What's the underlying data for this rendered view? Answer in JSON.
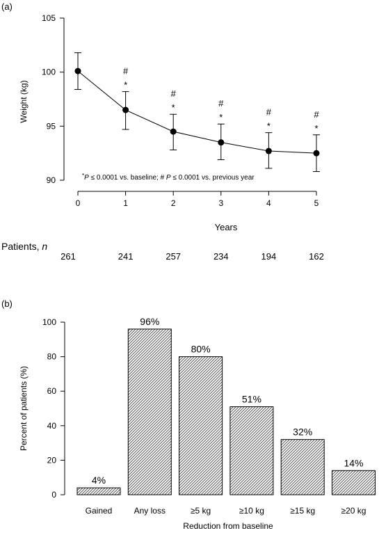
{
  "panel_a": {
    "panel_label": "(a)",
    "ylabel": "Weight (kg)",
    "xlabel": "Years",
    "annotation_star": "*",
    "annotation_hash": "#",
    "footnote": {
      "star": "*",
      "p1": "P",
      "t1": " ≤ 0.0001 vs. baseline; # ",
      "p2": "P",
      "t2": " ≤ 0.0001 vs. previous year"
    },
    "patients_label": "Patients, ",
    "patients_label_n": "n",
    "patients": [
      "261",
      "241",
      "257",
      "234",
      "194",
      "162"
    ]
  },
  "panel_b": {
    "panel_label": "(b)",
    "ylabel": "Percent of patients (%)",
    "xlabel": "Reduction from baseline"
  },
  "chart_data": [
    {
      "type": "line",
      "xlabel": "Years",
      "ylabel": "Weight (kg)",
      "x": [
        0,
        1,
        2,
        3,
        4,
        5
      ],
      "series": [
        {
          "values": [
            100.1,
            96.5,
            94.5,
            93.5,
            92.7,
            92.5
          ],
          "error_low": [
            98.4,
            94.7,
            92.8,
            91.9,
            91.1,
            90.8
          ],
          "error_high": [
            101.8,
            98.2,
            96.1,
            95.2,
            94.4,
            94.2
          ]
        }
      ],
      "star_marks": [
        1,
        2,
        3,
        4,
        5
      ],
      "hash_marks": [
        1,
        2,
        3,
        4,
        5
      ],
      "xlim": [
        0,
        5
      ],
      "ylim": [
        90,
        105
      ],
      "xticks": [
        "0",
        "1",
        "2",
        "3",
        "4",
        "5"
      ],
      "yticks": [
        "90",
        "95",
        "100",
        "105"
      ],
      "grid": false
    },
    {
      "type": "bar",
      "xlabel": "Reduction from baseline",
      "ylabel": "Percent of patients (%)",
      "categories": [
        "Gained",
        "Any loss",
        "≥5 kg",
        "≥10 kg",
        "≥15 kg",
        "≥20 kg"
      ],
      "values": [
        4,
        96,
        80,
        51,
        32,
        14
      ],
      "value_labels": [
        "4%",
        "96%",
        "80%",
        "51%",
        "32%",
        "14%"
      ],
      "ylim": [
        0,
        100
      ],
      "yticks": [
        "0",
        "20",
        "40",
        "60",
        "80",
        "100"
      ],
      "grid": false,
      "fill": "diagonal hatch"
    }
  ]
}
